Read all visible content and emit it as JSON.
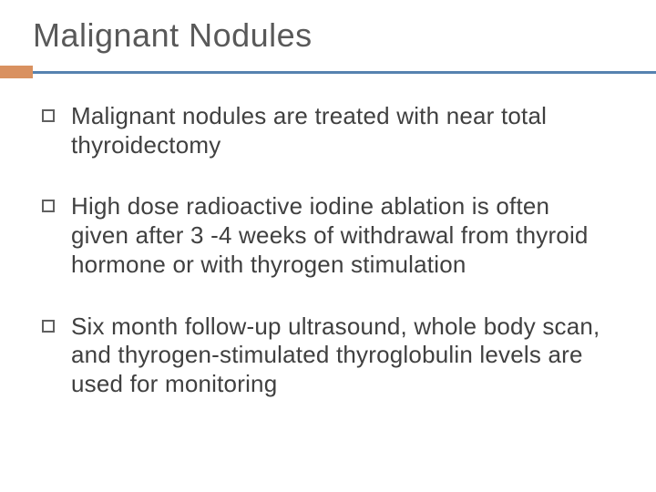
{
  "slide": {
    "title": "Malignant Nodules",
    "title_color": "#595959",
    "title_fontsize": 36,
    "background_color": "#ffffff",
    "divider": {
      "accent_color": "#d99160",
      "accent_width": 36,
      "accent_height": 14,
      "line_color": "#5682b0",
      "line_height": 3
    },
    "bullets": [
      {
        "text": "Malignant nodules are treated with near total thyroidectomy"
      },
      {
        "text": "High dose radioactive iodine ablation is often given after 3 -4 weeks of withdrawal from thyroid hormone or with thyrogen stimulation"
      },
      {
        "text": "Six month follow-up ultrasound, whole body scan, and thyrogen-stimulated thyroglobulin levels are used for monitoring"
      }
    ],
    "bullet_text_color": "#404040",
    "bullet_fontsize": 26,
    "bullet_marker_color": "#606060"
  }
}
